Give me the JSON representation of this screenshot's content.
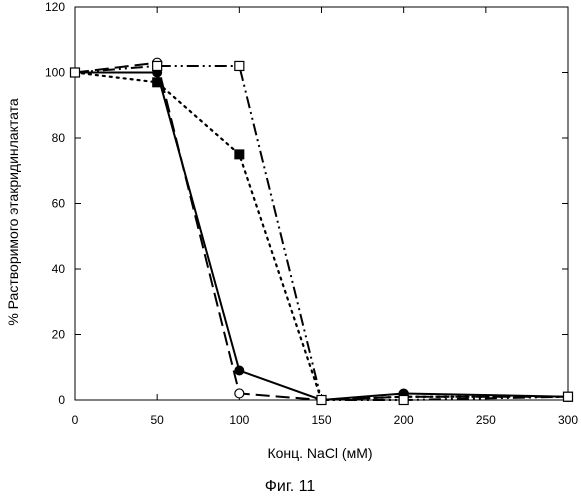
{
  "chart_data": {
    "type": "line",
    "xlabel": "Конц. NaCl (мМ)",
    "ylabel": "% Растворимого этакридинлактата",
    "xlim": [
      0,
      300
    ],
    "ylim": [
      0,
      120
    ],
    "xticks": [
      0,
      50,
      100,
      150,
      200,
      250,
      300
    ],
    "yticks": [
      0,
      20,
      40,
      60,
      80,
      100,
      120
    ],
    "grid": false,
    "series": [
      {
        "marker": "filled-circle",
        "line": "solid",
        "color": "#000000",
        "x": [
          0,
          50,
          100,
          150,
          200,
          300
        ],
        "y": [
          100,
          100,
          9,
          0,
          2,
          1
        ]
      },
      {
        "marker": "open-circle",
        "line": "long-dash",
        "color": "#000000",
        "x": [
          0,
          50,
          100,
          150,
          200,
          300
        ],
        "y": [
          100,
          103,
          2,
          0,
          1,
          1
        ]
      },
      {
        "marker": "filled-square",
        "line": "dotted",
        "color": "#000000",
        "x": [
          0,
          50,
          100,
          150,
          200,
          300
        ],
        "y": [
          100,
          97,
          75,
          0,
          1,
          1
        ]
      },
      {
        "marker": "open-square",
        "line": "dash-dot-dot",
        "color": "#000000",
        "x": [
          0,
          50,
          100,
          150,
          200,
          300
        ],
        "y": [
          100,
          102,
          102,
          0,
          0,
          1
        ]
      }
    ]
  },
  "caption": "Фиг. 11"
}
